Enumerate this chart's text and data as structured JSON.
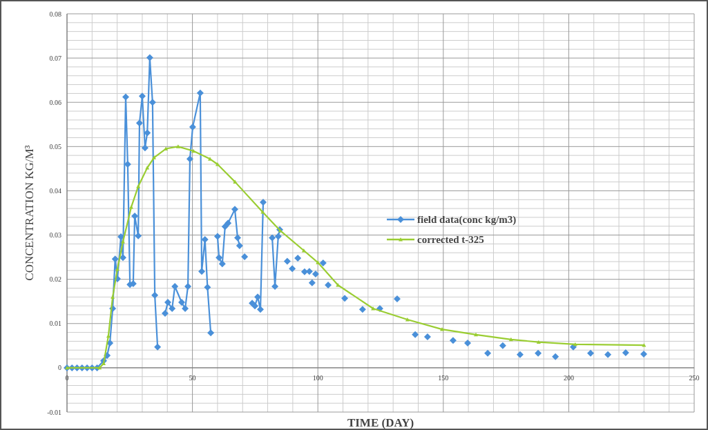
{
  "chart_data": {
    "type": "line",
    "xlabel": "TIME (DAY)",
    "ylabel": "CONCENTRATION KG/M³",
    "xlim": [
      0,
      250
    ],
    "xticks": [
      0,
      50,
      100,
      150,
      200,
      250
    ],
    "ylim": [
      -0.01,
      0.08
    ],
    "yticks": [
      -0.01,
      0,
      0.01,
      0.02,
      0.03,
      0.04,
      0.05,
      0.06,
      0.07,
      0.08
    ],
    "grid": true,
    "legend": "right",
    "series": [
      {
        "name": "field data(conc kg/m3)",
        "color": "#4a90d9",
        "marker": "diamond",
        "x": [
          0,
          2,
          4,
          6,
          8,
          10,
          12,
          14.6,
          16,
          17.1,
          18.2,
          19.2,
          20.1,
          21.5,
          22.3,
          23.4,
          24.2,
          25.1,
          26.4,
          27,
          28.4,
          28.9,
          30,
          31.1,
          32,
          33,
          34.1,
          35,
          36.1
        ],
        "values": [
          0,
          0,
          0,
          0,
          0,
          0,
          0,
          0.0016,
          0.0028,
          0.0056,
          0.0134,
          0.0246,
          0.0201,
          0.0296,
          0.0249,
          0.0612,
          0.046,
          0.0188,
          0.019,
          0.0343,
          0.0298,
          0.0553,
          0.0614,
          0.0497,
          0.0531,
          0.0701,
          0.06,
          0.0164,
          0.0047
        ]
      },
      {
        "color": "#4a90d9",
        "marker": "diamond",
        "x": [
          39.1,
          40.2,
          41.9,
          43,
          45.7,
          47.1,
          48.2,
          49,
          50.1,
          53.1,
          53.7,
          55,
          56,
          57.3
        ],
        "values": [
          0.0123,
          0.0148,
          0.0134,
          0.0184,
          0.0148,
          0.0134,
          0.0184,
          0.0472,
          0.0544,
          0.0621,
          0.0218,
          0.029,
          0.0182,
          0.0079
        ]
      },
      {
        "color": "#4a90d9",
        "marker": "diamond",
        "x": [
          60,
          60.6,
          61.9,
          63,
          64.2,
          66.9,
          68,
          68.8
        ],
        "values": [
          0.0297,
          0.0249,
          0.0235,
          0.0319,
          0.0327,
          0.0358,
          0.0294,
          0.0276
        ]
      },
      {
        "color": "#4a90d9",
        "marker": "diamond",
        "x": [
          73.8,
          74.9,
          76,
          77.1,
          78.2
        ],
        "values": [
          0.0146,
          0.014,
          0.016,
          0.0132,
          0.0374
        ]
      },
      {
        "color": "#4a90d9",
        "marker": "diamond",
        "x": [
          81.8,
          82.9,
          84.2,
          84.8
        ],
        "values": [
          0.0294,
          0.0184,
          0.0297,
          0.0312
        ]
      },
      {
        "type": "scatter",
        "color": "#4a90d9",
        "marker": "diamond",
        "x": [
          70.8,
          87.8,
          89.8,
          92,
          94.7,
          96.6,
          97.7,
          99.1,
          102.1,
          104.1,
          110.7,
          117.8,
          124.7,
          131.6,
          138.8,
          143.7,
          153.9,
          159.7,
          167.7,
          173.7,
          180.6,
          187.8,
          194.7,
          201.8,
          208.7,
          215.6,
          222.7,
          229.9
        ],
        "values": [
          0.0251,
          0.0241,
          0.0224,
          0.0248,
          0.0217,
          0.0218,
          0.0192,
          0.0212,
          0.0237,
          0.0187,
          0.0157,
          0.0132,
          0.0134,
          0.0156,
          0.0075,
          0.007,
          0.0062,
          0.0056,
          0.0033,
          0.005,
          0.003,
          0.0033,
          0.0025,
          0.0047,
          0.0033,
          0.003,
          0.0034,
          0.0031
        ]
      },
      {
        "name": "corrected t-325",
        "color": "#9acd32",
        "marker": "triangle",
        "x": [
          0,
          13,
          14.6,
          16.5,
          18.2,
          20.1,
          22.3,
          25.6,
          28.4,
          32,
          34.7,
          39.4,
          44.3,
          50.4,
          57,
          60,
          67,
          78,
          85,
          94.4,
          100,
          108,
          122,
          135.7,
          149.5,
          163,
          177,
          188,
          202.6,
          230
        ],
        "values": [
          0,
          0,
          0.001,
          0.0072,
          0.016,
          0.0223,
          0.0285,
          0.0363,
          0.041,
          0.0452,
          0.0475,
          0.0495,
          0.05,
          0.049,
          0.0472,
          0.046,
          0.042,
          0.0352,
          0.031,
          0.0265,
          0.0238,
          0.0187,
          0.0134,
          0.0109,
          0.0087,
          0.0075,
          0.0064,
          0.0058,
          0.0053,
          0.0051
        ]
      }
    ]
  }
}
